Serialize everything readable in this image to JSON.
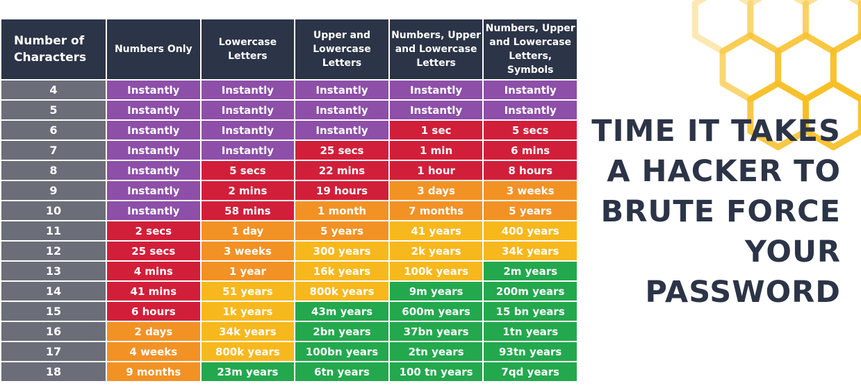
{
  "headline": "TIME IT TAKES\nA HACKER TO\nBRUTE FORCE\nYOUR\nPASSWORD",
  "colors": {
    "header_bg": "#2c3447",
    "row_head_bg": "#6b6e78",
    "instantly_purple": "#8d4fa8",
    "red": "#d11f3a",
    "orange": "#f29225",
    "yellow": "#f7b81e",
    "green": "#23a84d",
    "honeycomb": "#f6be22"
  },
  "legend": {
    "purple": "#8d4fa8",
    "red": "#d11f3a",
    "orange": "#f29225",
    "yellow": "#f7b81e",
    "green": "#23a84d"
  },
  "chart_data": {
    "type": "table",
    "columns": [
      "Number of Characters",
      "Numbers Only",
      "Lowercase Letters",
      "Upper and Lowercase Letters",
      "Numbers, Upper and Lowercase Letters",
      "Numbers, Upper and Lowercase Letters, Symbols"
    ],
    "rows": [
      {
        "chars": "4",
        "cells": [
          {
            "t": "Instantly",
            "c": "purple"
          },
          {
            "t": "Instantly",
            "c": "purple"
          },
          {
            "t": "Instantly",
            "c": "purple"
          },
          {
            "t": "Instantly",
            "c": "purple"
          },
          {
            "t": "Instantly",
            "c": "purple"
          }
        ]
      },
      {
        "chars": "5",
        "cells": [
          {
            "t": "Instantly",
            "c": "purple"
          },
          {
            "t": "Instantly",
            "c": "purple"
          },
          {
            "t": "Instantly",
            "c": "purple"
          },
          {
            "t": "Instantly",
            "c": "purple"
          },
          {
            "t": "Instantly",
            "c": "purple"
          }
        ]
      },
      {
        "chars": "6",
        "cells": [
          {
            "t": "Instantly",
            "c": "purple"
          },
          {
            "t": "Instantly",
            "c": "purple"
          },
          {
            "t": "Instantly",
            "c": "purple"
          },
          {
            "t": "1 sec",
            "c": "red"
          },
          {
            "t": "5 secs",
            "c": "red"
          }
        ]
      },
      {
        "chars": "7",
        "cells": [
          {
            "t": "Instantly",
            "c": "purple"
          },
          {
            "t": "Instantly",
            "c": "purple"
          },
          {
            "t": "25 secs",
            "c": "red"
          },
          {
            "t": "1 min",
            "c": "red"
          },
          {
            "t": "6 mins",
            "c": "red"
          }
        ]
      },
      {
        "chars": "8",
        "cells": [
          {
            "t": "Instantly",
            "c": "purple"
          },
          {
            "t": "5 secs",
            "c": "red"
          },
          {
            "t": "22 mins",
            "c": "red"
          },
          {
            "t": "1 hour",
            "c": "red"
          },
          {
            "t": "8 hours",
            "c": "red"
          }
        ]
      },
      {
        "chars": "9",
        "cells": [
          {
            "t": "Instantly",
            "c": "purple"
          },
          {
            "t": "2 mins",
            "c": "red"
          },
          {
            "t": "19 hours",
            "c": "red"
          },
          {
            "t": "3 days",
            "c": "orange"
          },
          {
            "t": "3 weeks",
            "c": "orange"
          }
        ]
      },
      {
        "chars": "10",
        "cells": [
          {
            "t": "Instantly",
            "c": "purple"
          },
          {
            "t": "58 mins",
            "c": "red"
          },
          {
            "t": "1 month",
            "c": "orange"
          },
          {
            "t": "7 months",
            "c": "orange"
          },
          {
            "t": "5 years",
            "c": "orange"
          }
        ]
      },
      {
        "chars": "11",
        "cells": [
          {
            "t": "2 secs",
            "c": "red"
          },
          {
            "t": "1 day",
            "c": "orange"
          },
          {
            "t": "5 years",
            "c": "orange"
          },
          {
            "t": "41 years",
            "c": "yellow"
          },
          {
            "t": "400 years",
            "c": "yellow"
          }
        ]
      },
      {
        "chars": "12",
        "cells": [
          {
            "t": "25 secs",
            "c": "red"
          },
          {
            "t": "3 weeks",
            "c": "orange"
          },
          {
            "t": "300 years",
            "c": "yellow"
          },
          {
            "t": "2k years",
            "c": "yellow"
          },
          {
            "t": "34k years",
            "c": "yellow"
          }
        ]
      },
      {
        "chars": "13",
        "cells": [
          {
            "t": "4 mins",
            "c": "red"
          },
          {
            "t": "1 year",
            "c": "orange"
          },
          {
            "t": "16k years",
            "c": "yellow"
          },
          {
            "t": "100k years",
            "c": "yellow"
          },
          {
            "t": "2m years",
            "c": "green"
          }
        ]
      },
      {
        "chars": "14",
        "cells": [
          {
            "t": "41 mins",
            "c": "red"
          },
          {
            "t": "51 years",
            "c": "yellow"
          },
          {
            "t": "800k years",
            "c": "yellow"
          },
          {
            "t": "9m years",
            "c": "green"
          },
          {
            "t": "200m years",
            "c": "green"
          }
        ]
      },
      {
        "chars": "15",
        "cells": [
          {
            "t": "6 hours",
            "c": "red"
          },
          {
            "t": "1k years",
            "c": "yellow"
          },
          {
            "t": "43m years",
            "c": "green"
          },
          {
            "t": "600m years",
            "c": "green"
          },
          {
            "t": "15 bn years",
            "c": "green"
          }
        ]
      },
      {
        "chars": "16",
        "cells": [
          {
            "t": "2 days",
            "c": "orange"
          },
          {
            "t": "34k years",
            "c": "yellow"
          },
          {
            "t": "2bn years",
            "c": "green"
          },
          {
            "t": "37bn years",
            "c": "green"
          },
          {
            "t": "1tn years",
            "c": "green"
          }
        ]
      },
      {
        "chars": "17",
        "cells": [
          {
            "t": "4 weeks",
            "c": "orange"
          },
          {
            "t": "800k years",
            "c": "yellow"
          },
          {
            "t": "100bn years",
            "c": "green"
          },
          {
            "t": "2tn years",
            "c": "green"
          },
          {
            "t": "93tn years",
            "c": "green"
          }
        ]
      },
      {
        "chars": "18",
        "cells": [
          {
            "t": "9 months",
            "c": "orange"
          },
          {
            "t": "23m years",
            "c": "green"
          },
          {
            "t": "6tn years",
            "c": "green"
          },
          {
            "t": "100 tn years",
            "c": "green"
          },
          {
            "t": "7qd years",
            "c": "green"
          }
        ]
      }
    ]
  }
}
